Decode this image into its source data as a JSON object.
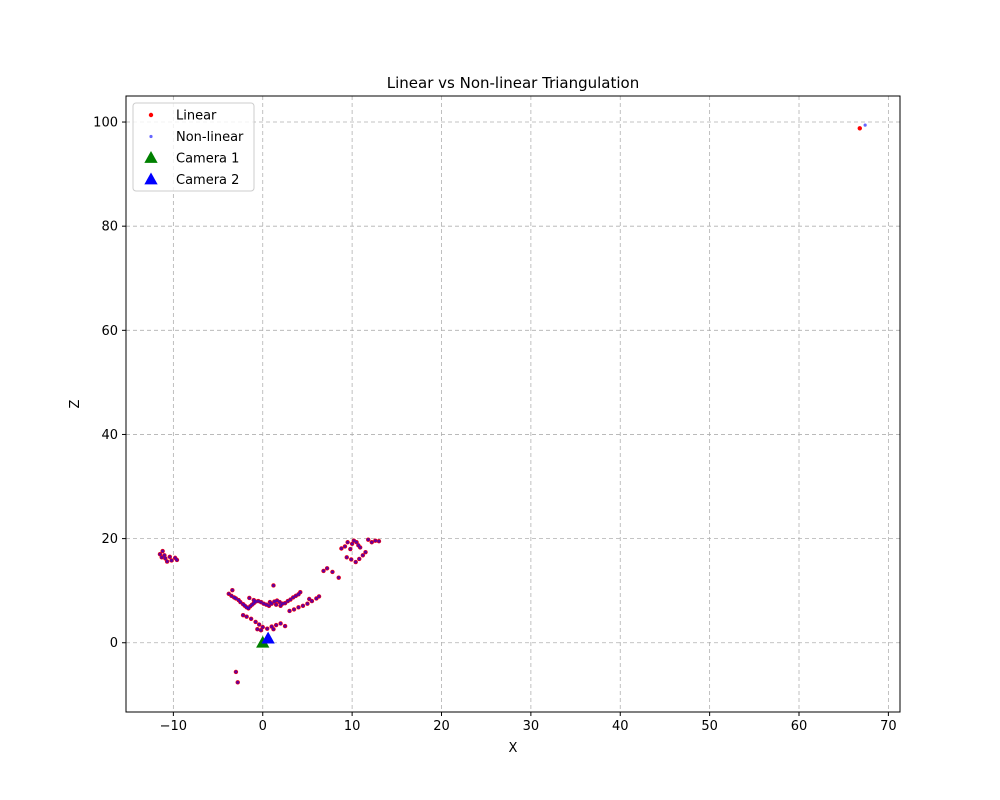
{
  "chart_data": {
    "type": "scatter",
    "title": "Linear vs Non-linear Triangulation",
    "xlabel": "X",
    "ylabel": "Z",
    "xlim": [
      -15.3,
      71.3
    ],
    "ylim": [
      -13.3,
      105.0
    ],
    "xticks": [
      -10,
      0,
      10,
      20,
      30,
      40,
      50,
      60,
      70
    ],
    "yticks": [
      0,
      20,
      40,
      60,
      80,
      100
    ],
    "grid": true,
    "legend_position": "top-left",
    "series": [
      {
        "name": "Linear",
        "marker": "circle",
        "color": "#ff0000",
        "points": [
          [
            -11.5,
            17.0
          ],
          [
            -11.2,
            17.6
          ],
          [
            -11.0,
            16.8
          ],
          [
            -10.9,
            16.2
          ],
          [
            -10.7,
            15.6
          ],
          [
            -10.4,
            16.5
          ],
          [
            -10.2,
            15.8
          ],
          [
            -9.8,
            16.3
          ],
          [
            -9.6,
            15.9
          ],
          [
            -11.3,
            16.4
          ],
          [
            -3.8,
            9.4
          ],
          [
            -3.5,
            9.0
          ],
          [
            -3.2,
            8.7
          ],
          [
            -3.0,
            8.5
          ],
          [
            -2.7,
            8.2
          ],
          [
            -2.5,
            7.8
          ],
          [
            -2.2,
            7.4
          ],
          [
            -2.0,
            7.1
          ],
          [
            -1.8,
            6.8
          ],
          [
            -1.6,
            6.6
          ],
          [
            -1.4,
            7.0
          ],
          [
            -1.2,
            7.3
          ],
          [
            -1.0,
            7.6
          ],
          [
            -0.8,
            7.9
          ],
          [
            -0.5,
            8.0
          ],
          [
            -0.2,
            7.8
          ],
          [
            0.1,
            7.5
          ],
          [
            0.4,
            7.3
          ],
          [
            0.7,
            7.1
          ],
          [
            1.0,
            7.5
          ],
          [
            1.3,
            7.9
          ],
          [
            1.6,
            8.1
          ],
          [
            1.9,
            7.8
          ],
          [
            2.2,
            7.5
          ],
          [
            2.5,
            7.6
          ],
          [
            2.8,
            8.0
          ],
          [
            3.1,
            8.3
          ],
          [
            3.4,
            8.7
          ],
          [
            3.7,
            9.0
          ],
          [
            4.0,
            9.3
          ],
          [
            4.2,
            9.7
          ],
          [
            -1.5,
            8.6
          ],
          [
            -1.0,
            8.2
          ],
          [
            1.2,
            11.0
          ],
          [
            2.0,
            7.1
          ],
          [
            1.5,
            7.3
          ],
          [
            0.8,
            7.8
          ],
          [
            -3.4,
            10.1
          ],
          [
            -2.2,
            5.3
          ],
          [
            -1.8,
            5.0
          ],
          [
            -1.3,
            4.6
          ],
          [
            -0.8,
            4.0
          ],
          [
            -0.4,
            3.5
          ],
          [
            0.0,
            3.0
          ],
          [
            0.5,
            2.7
          ],
          [
            1.0,
            3.1
          ],
          [
            1.5,
            3.4
          ],
          [
            2.0,
            3.7
          ],
          [
            -0.6,
            2.6
          ],
          [
            -0.2,
            2.4
          ],
          [
            1.2,
            2.6
          ],
          [
            2.5,
            3.2
          ],
          [
            3.0,
            6.1
          ],
          [
            3.5,
            6.4
          ],
          [
            4.0,
            6.8
          ],
          [
            4.5,
            7.1
          ],
          [
            5.0,
            7.5
          ],
          [
            5.5,
            8.0
          ],
          [
            6.0,
            8.5
          ],
          [
            6.3,
            8.9
          ],
          [
            5.2,
            8.4
          ],
          [
            6.8,
            13.8
          ],
          [
            7.2,
            14.3
          ],
          [
            7.8,
            13.6
          ],
          [
            8.5,
            12.5
          ],
          [
            8.8,
            18.1
          ],
          [
            9.2,
            18.5
          ],
          [
            9.5,
            19.3
          ],
          [
            9.8,
            18.0
          ],
          [
            10.0,
            19.0
          ],
          [
            10.2,
            19.6
          ],
          [
            10.5,
            19.3
          ],
          [
            10.7,
            18.7
          ],
          [
            10.9,
            18.3
          ],
          [
            9.4,
            16.4
          ],
          [
            9.9,
            16.0
          ],
          [
            10.4,
            15.5
          ],
          [
            10.8,
            16.1
          ],
          [
            11.2,
            16.8
          ],
          [
            11.5,
            17.4
          ],
          [
            11.8,
            19.8
          ],
          [
            12.2,
            19.3
          ],
          [
            12.6,
            19.6
          ],
          [
            13.0,
            19.5
          ],
          [
            -3.0,
            -5.6
          ],
          [
            -2.8,
            -7.6
          ],
          [
            66.8,
            98.8
          ]
        ]
      },
      {
        "name": "Non-linear",
        "marker": "circle",
        "color": "#0000ff",
        "points": [
          [
            -11.5,
            17.0
          ],
          [
            -11.2,
            17.6
          ],
          [
            -11.0,
            16.8
          ],
          [
            -10.9,
            16.2
          ],
          [
            -10.7,
            15.6
          ],
          [
            -10.4,
            16.5
          ],
          [
            -10.2,
            15.8
          ],
          [
            -9.8,
            16.3
          ],
          [
            -9.6,
            15.9
          ],
          [
            -11.3,
            16.4
          ],
          [
            -3.8,
            9.4
          ],
          [
            -3.5,
            9.0
          ],
          [
            -3.2,
            8.7
          ],
          [
            -3.0,
            8.5
          ],
          [
            -2.7,
            8.2
          ],
          [
            -2.5,
            7.8
          ],
          [
            -2.2,
            7.4
          ],
          [
            -2.0,
            7.1
          ],
          [
            -1.8,
            6.8
          ],
          [
            -1.6,
            6.6
          ],
          [
            -1.4,
            7.0
          ],
          [
            -1.2,
            7.3
          ],
          [
            -1.0,
            7.6
          ],
          [
            -0.8,
            7.9
          ],
          [
            -0.5,
            8.0
          ],
          [
            -0.2,
            7.8
          ],
          [
            0.1,
            7.5
          ],
          [
            0.4,
            7.3
          ],
          [
            0.7,
            7.1
          ],
          [
            1.0,
            7.5
          ],
          [
            1.3,
            7.9
          ],
          [
            1.6,
            8.1
          ],
          [
            1.9,
            7.8
          ],
          [
            2.2,
            7.5
          ],
          [
            2.5,
            7.6
          ],
          [
            2.8,
            8.0
          ],
          [
            3.1,
            8.3
          ],
          [
            3.4,
            8.7
          ],
          [
            3.7,
            9.0
          ],
          [
            4.0,
            9.3
          ],
          [
            4.2,
            9.7
          ],
          [
            -1.5,
            8.6
          ],
          [
            -1.0,
            8.2
          ],
          [
            1.2,
            11.0
          ],
          [
            2.0,
            7.1
          ],
          [
            1.5,
            7.3
          ],
          [
            0.8,
            7.8
          ],
          [
            -3.4,
            10.1
          ],
          [
            -2.2,
            5.3
          ],
          [
            -1.8,
            5.0
          ],
          [
            -1.3,
            4.6
          ],
          [
            -0.8,
            4.0
          ],
          [
            -0.4,
            3.5
          ],
          [
            0.0,
            3.0
          ],
          [
            0.5,
            2.7
          ],
          [
            1.0,
            3.1
          ],
          [
            1.5,
            3.4
          ],
          [
            2.0,
            3.7
          ],
          [
            -0.6,
            2.6
          ],
          [
            -0.2,
            2.4
          ],
          [
            1.2,
            2.6
          ],
          [
            2.5,
            3.2
          ],
          [
            3.0,
            6.1
          ],
          [
            3.5,
            6.4
          ],
          [
            4.0,
            6.8
          ],
          [
            4.5,
            7.1
          ],
          [
            5.0,
            7.5
          ],
          [
            5.5,
            8.0
          ],
          [
            6.0,
            8.5
          ],
          [
            6.3,
            8.9
          ],
          [
            5.2,
            8.4
          ],
          [
            6.8,
            13.8
          ],
          [
            7.2,
            14.3
          ],
          [
            7.8,
            13.6
          ],
          [
            8.5,
            12.5
          ],
          [
            8.8,
            18.1
          ],
          [
            9.2,
            18.5
          ],
          [
            9.5,
            19.3
          ],
          [
            9.8,
            18.0
          ],
          [
            10.0,
            19.0
          ],
          [
            10.2,
            19.6
          ],
          [
            10.5,
            19.3
          ],
          [
            10.7,
            18.7
          ],
          [
            10.9,
            18.3
          ],
          [
            9.4,
            16.4
          ],
          [
            9.9,
            16.0
          ],
          [
            10.4,
            15.5
          ],
          [
            10.8,
            16.1
          ],
          [
            11.2,
            16.8
          ],
          [
            11.5,
            17.4
          ],
          [
            11.8,
            19.8
          ],
          [
            12.2,
            19.3
          ],
          [
            12.6,
            19.6
          ],
          [
            13.0,
            19.5
          ],
          [
            -3.0,
            -5.6
          ],
          [
            -2.8,
            -7.6
          ],
          [
            67.4,
            99.4
          ]
        ]
      },
      {
        "name": "Camera 1",
        "marker": "triangle",
        "color": "#008000",
        "points": [
          [
            0.0,
            0.0
          ]
        ]
      },
      {
        "name": "Camera 2",
        "marker": "triangle",
        "color": "#0000ff",
        "points": [
          [
            0.6,
            0.8
          ]
        ]
      }
    ]
  }
}
